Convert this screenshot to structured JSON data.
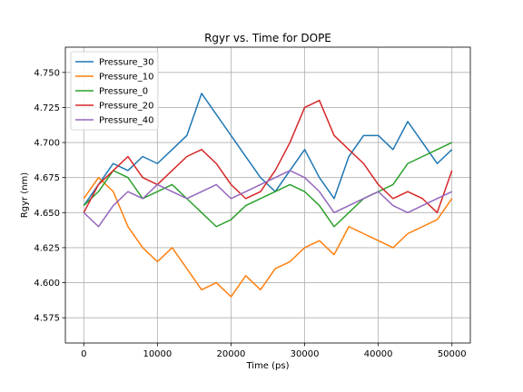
{
  "chart_data": {
    "type": "line",
    "title": "Rgyr vs. Time for DOPE",
    "xlabel": "Time (ps)",
    "ylabel": "Rgyr (nm)",
    "xlim": [
      -2500,
      52500
    ],
    "ylim": [
      4.557,
      4.768
    ],
    "x_ticks": [
      0,
      10000,
      20000,
      30000,
      40000,
      50000
    ],
    "y_ticks": [
      4.575,
      4.6,
      4.625,
      4.65,
      4.675,
      4.7,
      4.725,
      4.75
    ],
    "grid": true,
    "legend_position": "top-left",
    "x": [
      0,
      2000,
      4000,
      6000,
      8000,
      10000,
      12000,
      14000,
      16000,
      18000,
      20000,
      22000,
      24000,
      26000,
      28000,
      30000,
      32000,
      34000,
      36000,
      38000,
      40000,
      42000,
      44000,
      46000,
      48000,
      50000
    ],
    "series": [
      {
        "name": "Pressure_30",
        "color": "#1f77b4",
        "values": [
          4.655,
          4.67,
          4.685,
          4.68,
          4.69,
          4.685,
          4.695,
          4.705,
          4.735,
          4.72,
          4.705,
          4.69,
          4.675,
          4.665,
          4.68,
          4.695,
          4.675,
          4.66,
          4.69,
          4.705,
          4.705,
          4.695,
          4.715,
          4.7,
          4.685,
          4.695
        ]
      },
      {
        "name": "Pressure_10",
        "color": "#ff7f0e",
        "values": [
          4.66,
          4.675,
          4.665,
          4.64,
          4.625,
          4.615,
          4.625,
          4.61,
          4.595,
          4.6,
          4.59,
          4.605,
          4.595,
          4.61,
          4.615,
          4.625,
          4.63,
          4.62,
          4.64,
          4.635,
          4.63,
          4.625,
          4.635,
          4.64,
          4.645,
          4.66
        ]
      },
      {
        "name": "Pressure_0",
        "color": "#2ca02c",
        "values": [
          4.655,
          4.665,
          4.68,
          4.675,
          4.66,
          4.665,
          4.67,
          4.66,
          4.65,
          4.64,
          4.645,
          4.655,
          4.66,
          4.665,
          4.67,
          4.665,
          4.655,
          4.64,
          4.65,
          4.66,
          4.665,
          4.67,
          4.685,
          4.69,
          4.695,
          4.7
        ]
      },
      {
        "name": "Pressure_20",
        "color": "#d62728",
        "values": [
          4.65,
          4.67,
          4.68,
          4.69,
          4.675,
          4.67,
          4.68,
          4.69,
          4.695,
          4.685,
          4.67,
          4.66,
          4.665,
          4.68,
          4.7,
          4.725,
          4.73,
          4.705,
          4.695,
          4.685,
          4.67,
          4.66,
          4.665,
          4.66,
          4.65,
          4.68
        ]
      },
      {
        "name": "Pressure_40",
        "color": "#9467bd",
        "values": [
          4.65,
          4.64,
          4.655,
          4.665,
          4.66,
          4.67,
          4.665,
          4.66,
          4.665,
          4.67,
          4.66,
          4.665,
          4.67,
          4.675,
          4.68,
          4.675,
          4.665,
          4.65,
          4.655,
          4.66,
          4.665,
          4.655,
          4.65,
          4.655,
          4.66,
          4.665
        ]
      }
    ]
  }
}
